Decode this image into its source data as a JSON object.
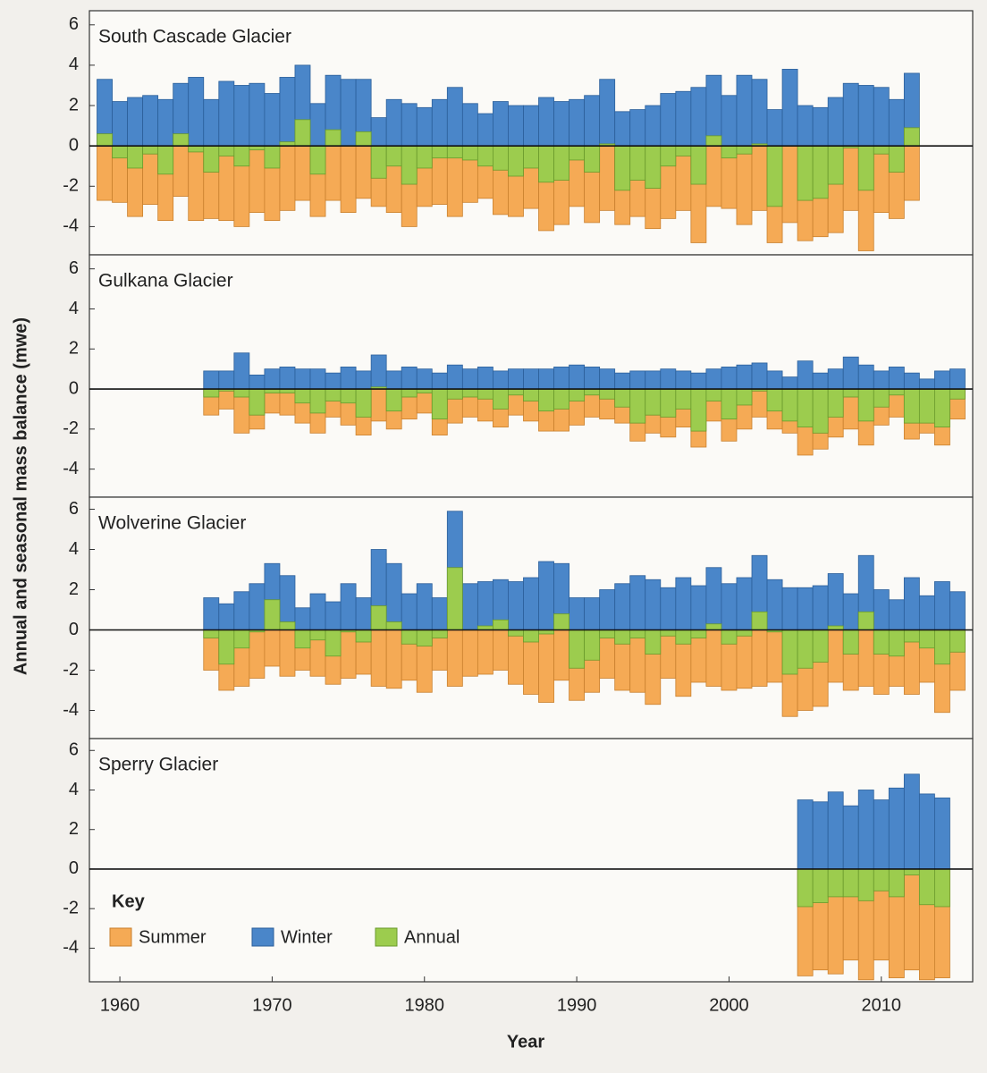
{
  "figure": {
    "ylabel": "Annual and seasonal mass balance (mwe)",
    "xlabel": "Year",
    "xlim": [
      1958,
      2016
    ],
    "xticks": [
      1960,
      1970,
      1980,
      1990,
      2000,
      2010
    ],
    "legend": {
      "title": "Key",
      "loc": "lower left",
      "series": [
        {
          "name": "Summer",
          "color": "#f5aa55"
        },
        {
          "name": "Winter",
          "color": "#4a86c9"
        },
        {
          "name": "Annual",
          "color": "#9ccc4e"
        }
      ]
    }
  },
  "chart_data": [
    {
      "type": "bar",
      "title": "South Cascade Glacier",
      "ylim": [
        -5.4,
        6.7
      ],
      "yticks": [
        6,
        4,
        2,
        0,
        -2,
        -4
      ],
      "x": [
        1959,
        1960,
        1961,
        1962,
        1963,
        1964,
        1965,
        1966,
        1967,
        1968,
        1969,
        1970,
        1971,
        1972,
        1973,
        1974,
        1975,
        1976,
        1977,
        1978,
        1979,
        1980,
        1981,
        1982,
        1983,
        1984,
        1985,
        1986,
        1987,
        1988,
        1989,
        1990,
        1991,
        1992,
        1993,
        1994,
        1995,
        1996,
        1997,
        1998,
        1999,
        2000,
        2001,
        2002,
        2003,
        2004,
        2005,
        2006,
        2007,
        2008,
        2009,
        2010,
        2011,
        2012
      ],
      "series": [
        {
          "values": [
            -2.7,
            -2.8,
            -3.5,
            -2.9,
            -3.7,
            -2.5,
            -3.7,
            -3.6,
            -3.7,
            -4.0,
            -3.3,
            -3.7,
            -3.2,
            -2.7,
            -3.5,
            -2.7,
            -3.3,
            -2.6,
            -3.0,
            -3.3,
            -4.0,
            -3.0,
            -2.9,
            -3.5,
            -2.8,
            -2.6,
            -3.4,
            -3.5,
            -3.1,
            -4.2,
            -3.9,
            -3.0,
            -3.8,
            -3.2,
            -3.9,
            -3.5,
            -4.1,
            -3.6,
            -3.2,
            -4.8,
            -3.0,
            -3.1,
            -3.9,
            -3.2,
            -4.8,
            -3.8,
            -4.7,
            -4.5,
            -4.3,
            -3.2,
            -5.2,
            -3.3,
            -3.6,
            -2.7
          ]
        },
        {
          "values": [
            3.3,
            2.2,
            2.4,
            2.5,
            2.3,
            3.1,
            3.4,
            2.3,
            3.2,
            3.0,
            3.1,
            2.6,
            3.4,
            4.0,
            2.1,
            3.5,
            3.3,
            3.3,
            1.4,
            2.3,
            2.1,
            1.9,
            2.3,
            2.9,
            2.1,
            1.6,
            2.2,
            2.0,
            2.0,
            2.4,
            2.2,
            2.3,
            2.5,
            3.3,
            1.7,
            1.8,
            2.0,
            2.6,
            2.7,
            2.9,
            3.5,
            2.5,
            3.5,
            3.3,
            1.8,
            3.8,
            2.0,
            1.9,
            2.4,
            3.1,
            3.0,
            2.9,
            2.3,
            3.6
          ]
        },
        {
          "values": [
            0.6,
            -0.6,
            -1.1,
            -0.4,
            -1.4,
            0.6,
            -0.3,
            -1.3,
            -0.5,
            -1.0,
            -0.2,
            -1.1,
            0.2,
            1.3,
            -1.4,
            0.8,
            0,
            0.7,
            -1.6,
            -1.0,
            -1.9,
            -1.1,
            -0.6,
            -0.6,
            -0.7,
            -1.0,
            -1.2,
            -1.5,
            -1.1,
            -1.8,
            -1.7,
            -0.7,
            -1.3,
            0.1,
            -2.2,
            -1.7,
            -2.1,
            -1.0,
            -0.5,
            -1.9,
            0.5,
            -0.6,
            -0.4,
            0.1,
            -3.0,
            0,
            -2.7,
            -2.6,
            -1.9,
            -0.1,
            -2.2,
            -0.4,
            -1.3,
            0.9
          ]
        }
      ]
    },
    {
      "type": "bar",
      "title": "Gulkana Glacier",
      "ylim": [
        -5.4,
        6.7
      ],
      "yticks": [
        6,
        4,
        2,
        0,
        -2,
        -4
      ],
      "x": [
        1966,
        1967,
        1968,
        1969,
        1970,
        1971,
        1972,
        1973,
        1974,
        1975,
        1976,
        1977,
        1978,
        1979,
        1980,
        1981,
        1982,
        1983,
        1984,
        1985,
        1986,
        1987,
        1988,
        1989,
        1990,
        1991,
        1992,
        1993,
        1994,
        1995,
        1996,
        1997,
        1998,
        1999,
        2000,
        2001,
        2002,
        2003,
        2004,
        2005,
        2006,
        2007,
        2008,
        2009,
        2010,
        2011,
        2012,
        2013,
        2014,
        2015
      ],
      "series": [
        {
          "values": [
            -1.3,
            -1.0,
            -2.2,
            -2.0,
            -1.2,
            -1.3,
            -1.7,
            -2.2,
            -1.4,
            -1.8,
            -2.3,
            -1.6,
            -2.0,
            -1.5,
            -1.2,
            -2.3,
            -1.7,
            -1.4,
            -1.6,
            -1.9,
            -1.3,
            -1.6,
            -2.1,
            -2.1,
            -1.8,
            -1.4,
            -1.5,
            -1.7,
            -2.6,
            -2.2,
            -2.4,
            -1.9,
            -2.9,
            -1.6,
            -2.6,
            -2.0,
            -1.4,
            -2.0,
            -2.2,
            -3.3,
            -3.0,
            -2.4,
            -2.0,
            -2.8,
            -1.8,
            -1.4,
            -2.5,
            -2.2,
            -2.8,
            -1.5
          ]
        },
        {
          "values": [
            0.9,
            0.9,
            1.8,
            0.7,
            1.0,
            1.1,
            1.0,
            1.0,
            0.8,
            1.1,
            0.9,
            1.7,
            0.9,
            1.1,
            1.0,
            0.8,
            1.2,
            1.0,
            1.1,
            0.9,
            1.0,
            1.0,
            1.0,
            1.1,
            1.2,
            1.1,
            1.0,
            0.8,
            0.9,
            0.9,
            1.0,
            0.9,
            0.8,
            1.0,
            1.1,
            1.2,
            1.3,
            0.9,
            0.6,
            1.4,
            0.8,
            1.0,
            1.6,
            1.2,
            0.9,
            1.1,
            0.8,
            0.5,
            0.9,
            1.0
          ]
        },
        {
          "values": [
            -0.4,
            -0.1,
            -0.4,
            -1.3,
            -0.2,
            -0.2,
            -0.7,
            -1.2,
            -0.6,
            -0.7,
            -1.4,
            0.1,
            -1.1,
            -0.4,
            -0.2,
            -1.5,
            -0.5,
            -0.4,
            -0.5,
            -1.0,
            -0.3,
            -0.6,
            -1.1,
            -1.0,
            -0.6,
            -0.3,
            -0.5,
            -0.9,
            -1.7,
            -1.3,
            -1.4,
            -1.0,
            -2.1,
            -0.6,
            -1.5,
            -0.8,
            -0.1,
            -1.1,
            -1.6,
            -1.9,
            -2.2,
            -1.4,
            -0.4,
            -1.6,
            -0.9,
            -0.3,
            -1.7,
            -1.7,
            -1.9,
            -0.5
          ]
        }
      ]
    },
    {
      "type": "bar",
      "title": "Wolverine Glacier",
      "ylim": [
        -5.4,
        6.6
      ],
      "yticks": [
        6,
        4,
        2,
        0,
        -2,
        -4
      ],
      "x": [
        1966,
        1967,
        1968,
        1969,
        1970,
        1971,
        1972,
        1973,
        1974,
        1975,
        1976,
        1977,
        1978,
        1979,
        1980,
        1981,
        1982,
        1983,
        1984,
        1985,
        1986,
        1987,
        1988,
        1989,
        1990,
        1991,
        1992,
        1993,
        1994,
        1995,
        1996,
        1997,
        1998,
        1999,
        2000,
        2001,
        2002,
        2003,
        2004,
        2005,
        2006,
        2007,
        2008,
        2009,
        2010,
        2011,
        2012,
        2013,
        2014,
        2015
      ],
      "series": [
        {
          "values": [
            -2.0,
            -3.0,
            -2.8,
            -2.4,
            -1.8,
            -2.3,
            -2.0,
            -2.3,
            -2.7,
            -2.4,
            -2.2,
            -2.8,
            -2.9,
            -2.5,
            -3.1,
            -2.0,
            -2.8,
            -2.3,
            -2.2,
            -2.0,
            -2.7,
            -3.2,
            -3.6,
            -2.5,
            -3.5,
            -3.1,
            -2.4,
            -3.0,
            -3.1,
            -3.7,
            -2.4,
            -3.3,
            -2.6,
            -2.8,
            -3.0,
            -2.9,
            -2.8,
            -2.6,
            -4.3,
            -4.0,
            -3.8,
            -2.6,
            -3.0,
            -2.8,
            -3.2,
            -2.8,
            -3.2,
            -2.6,
            -4.1,
            -3.0
          ]
        },
        {
          "values": [
            1.6,
            1.3,
            1.9,
            2.3,
            3.3,
            2.7,
            1.1,
            1.8,
            1.4,
            2.3,
            1.6,
            4.0,
            3.3,
            1.8,
            2.3,
            1.6,
            5.9,
            2.3,
            2.4,
            2.5,
            2.4,
            2.6,
            3.4,
            3.3,
            1.6,
            1.6,
            2.0,
            2.3,
            2.7,
            2.5,
            2.1,
            2.6,
            2.2,
            3.1,
            2.3,
            2.6,
            3.7,
            2.5,
            2.1,
            2.1,
            2.2,
            2.8,
            1.8,
            3.7,
            2.0,
            1.5,
            2.6,
            1.7,
            2.4,
            1.9
          ]
        },
        {
          "values": [
            -0.4,
            -1.7,
            -0.9,
            -0.1,
            1.5,
            0.4,
            -0.9,
            -0.5,
            -1.3,
            -0.1,
            -0.6,
            1.2,
            0.4,
            -0.7,
            -0.8,
            -0.4,
            3.1,
            0,
            0.2,
            0.5,
            -0.3,
            -0.6,
            -0.2,
            0.8,
            -1.9,
            -1.5,
            -0.4,
            -0.7,
            -0.4,
            -1.2,
            -0.3,
            -0.7,
            -0.4,
            0.3,
            -0.7,
            -0.3,
            0.9,
            -0.1,
            -2.2,
            -1.9,
            -1.6,
            0.2,
            -1.2,
            0.9,
            -1.2,
            -1.3,
            -0.6,
            -0.9,
            -1.7,
            -1.1
          ]
        }
      ]
    },
    {
      "type": "bar",
      "title": "Sperry Glacier",
      "ylim": [
        -5.7,
        6.6
      ],
      "yticks": [
        6,
        4,
        2,
        0,
        -2,
        -4
      ],
      "x": [
        2005,
        2006,
        2007,
        2008,
        2009,
        2010,
        2011,
        2012,
        2013,
        2014
      ],
      "series": [
        {
          "values": [
            -5.4,
            -5.1,
            -5.3,
            -4.6,
            -5.6,
            -4.6,
            -5.5,
            -5.1,
            -5.6,
            -5.5
          ]
        },
        {
          "values": [
            3.5,
            3.4,
            3.9,
            3.2,
            4.0,
            3.5,
            4.1,
            4.8,
            3.8,
            3.6
          ]
        },
        {
          "values": [
            -1.9,
            -1.7,
            -1.4,
            -1.4,
            -1.6,
            -1.1,
            -1.4,
            -0.3,
            -1.8,
            -1.9
          ]
        }
      ]
    }
  ]
}
